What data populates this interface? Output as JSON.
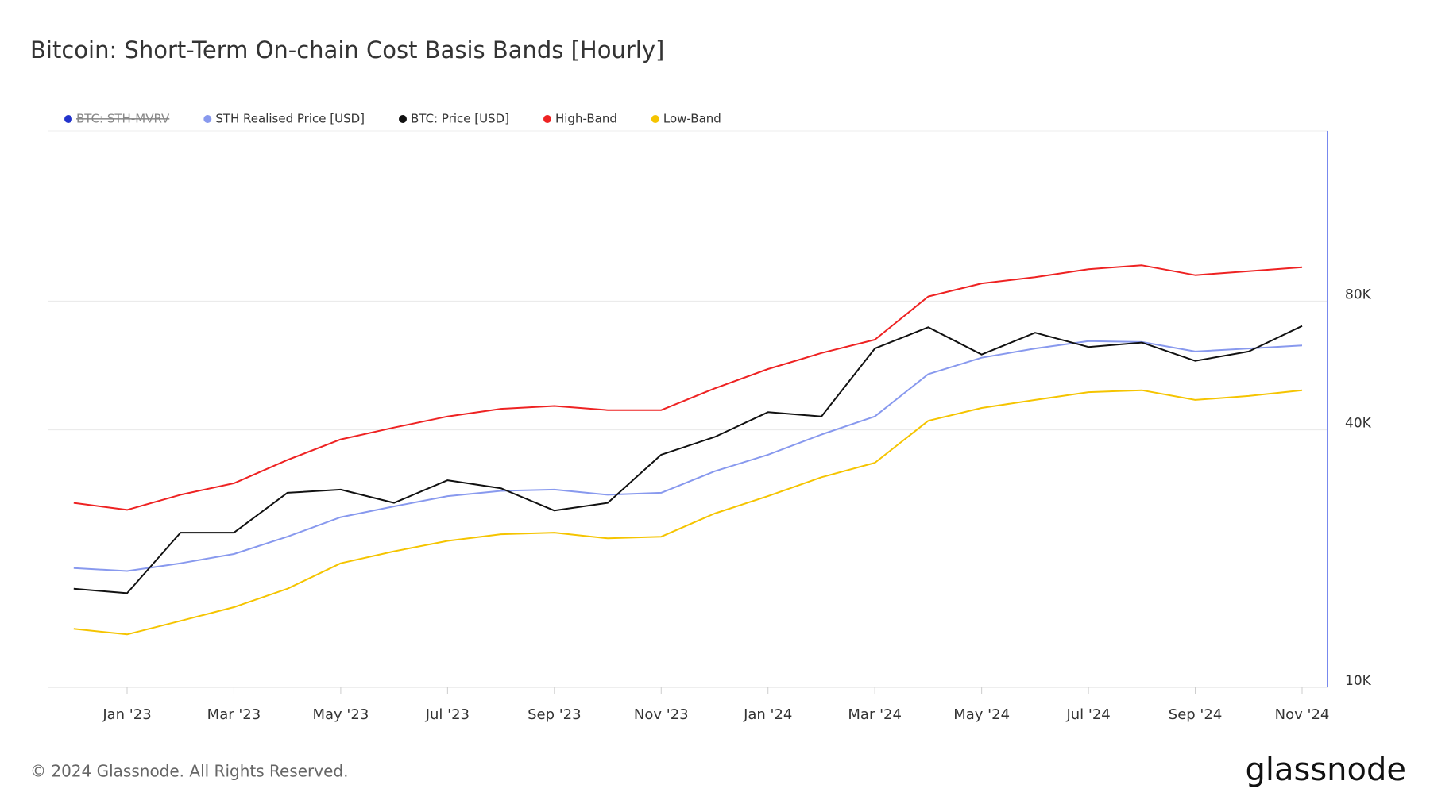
{
  "chart_data": {
    "type": "line",
    "title": "Bitcoin: Short-Term On-chain Cost Basis Bands [Hourly]",
    "footer": "© 2024 Glassnode. All Rights Reserved.",
    "brand": "glassnode",
    "x": [
      "2022-12",
      "2023-01",
      "2023-02",
      "2023-03",
      "2023-04",
      "2023-05",
      "2023-06",
      "2023-07",
      "2023-08",
      "2023-09",
      "2023-10",
      "2023-11",
      "2023-12",
      "2024-01",
      "2024-02",
      "2024-03",
      "2024-04",
      "2024-05",
      "2024-06",
      "2024-07",
      "2024-08",
      "2024-09",
      "2024-10",
      "2024-11"
    ],
    "series": [
      {
        "name": "BTC: STH-MVRV",
        "color": "#2233cc",
        "hidden": true
      },
      {
        "name": "STH Realised Price [USD]",
        "color": "#8899ee",
        "values": [
          19000,
          18700,
          19500,
          20500,
          22500,
          25000,
          26500,
          28000,
          28800,
          29000,
          28200,
          28500,
          32000,
          35000,
          39000,
          43000,
          54000,
          59000,
          62000,
          64500,
          64200,
          61000,
          62000,
          63000
        ]
      },
      {
        "name": "BTC: Price [USD]",
        "color": "#111111",
        "values": [
          17000,
          16600,
          23000,
          23000,
          28500,
          29000,
          27000,
          30500,
          29200,
          25900,
          27000,
          35000,
          38500,
          44000,
          43000,
          62000,
          69500,
          60000,
          67500,
          62500,
          64000,
          58000,
          61000,
          70000
        ]
      },
      {
        "name": "High-Band",
        "color": "#ee2222",
        "values": [
          27000,
          26000,
          28200,
          30000,
          34000,
          38000,
          40500,
          43000,
          44800,
          45500,
          44500,
          44500,
          50000,
          55500,
          60500,
          65000,
          82000,
          88000,
          91000,
          95000,
          97000,
          92000,
          94000,
          96000
        ]
      },
      {
        "name": "Low-Band",
        "color": "#f5c400",
        "values": [
          13700,
          13300,
          14300,
          15400,
          17000,
          19500,
          20800,
          22000,
          22800,
          23000,
          22300,
          22500,
          25500,
          28000,
          31000,
          33500,
          42000,
          45000,
          47000,
          49000,
          49500,
          47000,
          48000,
          49500
        ]
      }
    ],
    "xticks": [
      {
        "value": "2023-01",
        "label": "Jan '23"
      },
      {
        "value": "2023-03",
        "label": "Mar '23"
      },
      {
        "value": "2023-05",
        "label": "May '23"
      },
      {
        "value": "2023-07",
        "label": "Jul '23"
      },
      {
        "value": "2023-09",
        "label": "Sep '23"
      },
      {
        "value": "2023-11",
        "label": "Nov '23"
      },
      {
        "value": "2024-01",
        "label": "Jan '24"
      },
      {
        "value": "2024-03",
        "label": "Mar '24"
      },
      {
        "value": "2024-05",
        "label": "May '24"
      },
      {
        "value": "2024-07",
        "label": "Jul '24"
      },
      {
        "value": "2024-09",
        "label": "Sep '24"
      },
      {
        "value": "2024-11",
        "label": "Nov '24"
      }
    ],
    "ylim": [
      10000,
      200000
    ],
    "yticks": [
      {
        "value": 10000,
        "label": "10K"
      },
      {
        "value": 40000,
        "label": "40K"
      },
      {
        "value": 80000,
        "label": "80K"
      }
    ],
    "log_scale": true,
    "grid": true
  }
}
